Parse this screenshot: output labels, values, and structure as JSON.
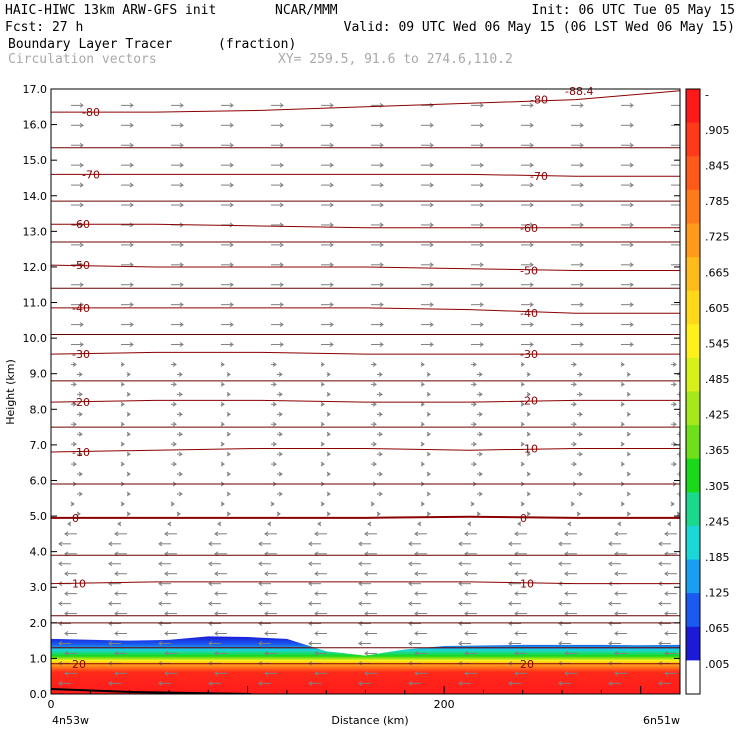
{
  "header": {
    "left_line1": "HAIC-HIWC 13km ARW-GFS init",
    "center_line1": "NCAR/MMM",
    "right_line1": "Init: 06 UTC Tue 05 May 15",
    "left_line2": "Fcst:    27 h",
    "right_line2": "Valid: 09 UTC Wed 06 May 15 (06 LST Wed 06 May 15)",
    "field_name": "Boundary Layer Tracer",
    "field_units": "(fraction)",
    "vector_name": "Circulation vectors",
    "xy_text": "XY= 259.5, 91.6 to 274.6,110.2"
  },
  "chart_data": {
    "type": "cross-section",
    "ylabel": "Height (km)",
    "xlabel": "Distance (km)",
    "x_left_label": "4n53w",
    "x_right_label": "6n51w",
    "xlim": [
      0,
      320
    ],
    "ylim": [
      0,
      17
    ],
    "x_ticks": [
      0,
      200
    ],
    "y_ticks": [
      "0.0",
      "1.0",
      "2.0",
      "3.0",
      "4.0",
      "5.0",
      "6.0",
      "7.0",
      "8.0",
      "9.0",
      "10.0",
      "11.0",
      "12.0",
      "13.0",
      "14.0",
      "15.0",
      "16.0",
      "17.0"
    ],
    "isotherms": [
      {
        "label": "-80",
        "y": [
          16.35,
          16.35,
          16.4,
          16.5,
          16.6,
          16.7,
          16.95
        ]
      },
      {
        "label": "-70",
        "y": [
          14.6,
          14.6,
          14.6,
          14.6,
          14.6,
          14.55,
          14.55
        ]
      },
      {
        "label": "-60",
        "y": [
          13.2,
          13.2,
          13.15,
          13.1,
          13.1,
          13.1,
          13.1
        ]
      },
      {
        "label": "-50",
        "y": [
          12.05,
          12.0,
          12.0,
          12.0,
          11.95,
          11.9,
          11.9
        ]
      },
      {
        "label": "-40",
        "y": [
          10.85,
          10.85,
          10.85,
          10.85,
          10.8,
          10.7,
          10.7
        ]
      },
      {
        "label": "-30",
        "y": [
          9.55,
          9.6,
          9.6,
          9.55,
          9.55,
          9.55,
          9.55
        ]
      },
      {
        "label": "-20",
        "y": [
          8.2,
          8.25,
          8.25,
          8.2,
          8.2,
          8.25,
          8.25
        ]
      },
      {
        "label": "-10",
        "y": [
          6.8,
          6.85,
          6.9,
          6.9,
          6.85,
          6.9,
          6.9
        ]
      },
      {
        "label": "0",
        "y": [
          4.95,
          4.95,
          4.95,
          4.95,
          4.98,
          4.95,
          4.95
        ]
      },
      {
        "label": "10",
        "y": [
          3.1,
          3.15,
          3.15,
          3.15,
          3.15,
          3.1,
          3.1
        ]
      },
      {
        "label": "20",
        "y": [
          0.85,
          0.85,
          0.85,
          0.85,
          0.85,
          0.85,
          0.85
        ]
      }
    ],
    "top_label": "-88.4",
    "tracer_depth_km": [
      1.55,
      1.5,
      1.52,
      1.62,
      1.6,
      1.55,
      1.2,
      1.08,
      1.25,
      1.35,
      1.38,
      1.38,
      1.37,
      1.38
    ],
    "tracer_x_km": [
      0,
      40,
      60,
      80,
      100,
      120,
      140,
      160,
      180,
      200,
      240,
      280,
      300,
      320
    ],
    "colorbar": {
      "labels": [
        "-",
        ".905",
        ".845",
        ".785",
        ".725",
        ".665",
        ".605",
        ".545",
        ".485",
        ".425",
        ".365",
        ".305",
        ".245",
        ".185",
        ".125",
        ".065",
        ".005"
      ],
      "colors": [
        "#ff1a1a",
        "#ff3a1a",
        "#ff5a1a",
        "#ff7a1a",
        "#ff9a1a",
        "#ffbb1a",
        "#ffd81a",
        "#fff01a",
        "#d8f01a",
        "#a6e81a",
        "#6ee01a",
        "#1ad81a",
        "#1ad88c",
        "#1ad8d8",
        "#1a9ef0",
        "#1a5af0",
        "#1a1ad8"
      ]
    }
  }
}
